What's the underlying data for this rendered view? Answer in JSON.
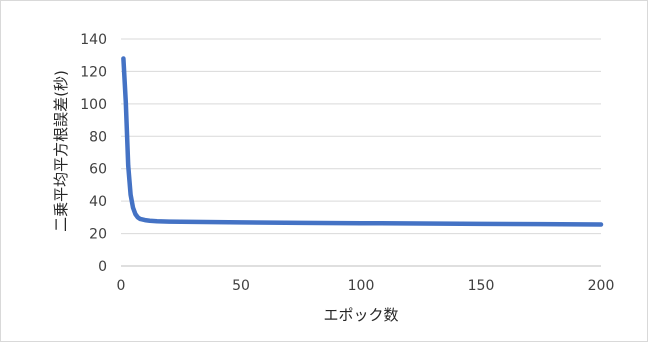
{
  "chart_data": {
    "type": "line",
    "title": "",
    "xlabel": "エポック数",
    "ylabel": "二乗平均平方根誤差(秒)",
    "xlim": [
      0,
      200
    ],
    "ylim": [
      0,
      140
    ],
    "x_ticks": [
      0,
      50,
      100,
      150,
      200
    ],
    "y_ticks": [
      0,
      20,
      40,
      60,
      80,
      100,
      120,
      140
    ],
    "x_tick_labels": [
      "0",
      "50",
      "100",
      "150",
      "200"
    ],
    "y_tick_labels": [
      "0",
      "20",
      "40",
      "60",
      "80",
      "100",
      "120",
      "140"
    ],
    "grid": "horizontal",
    "legend": "none",
    "series": [
      {
        "color": "#4472c4",
        "x": [
          1,
          2,
          3,
          4,
          5,
          6,
          7,
          8,
          10,
          12,
          15,
          20,
          30,
          50,
          75,
          100,
          125,
          150,
          175,
          200
        ],
        "y": [
          128,
          101,
          62,
          44,
          36,
          32,
          30,
          29,
          28.3,
          27.9,
          27.6,
          27.4,
          27.2,
          26.9,
          26.6,
          26.4,
          26.2,
          26.0,
          25.8,
          25.6
        ]
      }
    ]
  }
}
